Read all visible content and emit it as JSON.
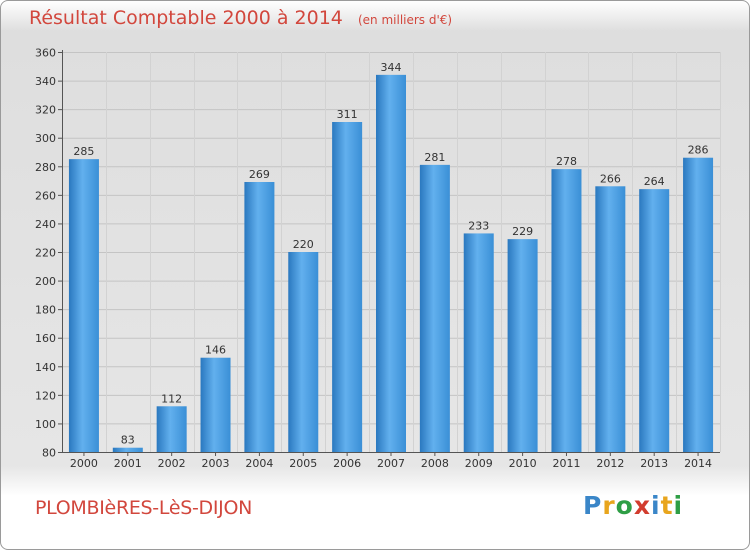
{
  "title": "Résultat Comptable 2000 à 2014",
  "subtitle": "(en milliers d'€)",
  "commune": "PLOMBIèRES-LèS-DIJON",
  "logo": {
    "letters": [
      "P",
      "r",
      "o",
      "x",
      "i",
      "t",
      "i"
    ],
    "colors": [
      "#3a86c8",
      "#e8a51d",
      "#2e9e45",
      "#d23c2e",
      "#3a86c8",
      "#e8a51d",
      "#2e9e45"
    ]
  },
  "colors": {
    "bar": "#3a8fd6",
    "bar_light": "#62b0ee",
    "bar_dark": "#2a78bf",
    "title": "#d2473d"
  },
  "chart_data": {
    "type": "bar",
    "categories": [
      "2000",
      "2001",
      "2002",
      "2003",
      "2004",
      "2005",
      "2006",
      "2007",
      "2008",
      "2009",
      "2010",
      "2011",
      "2012",
      "2013",
      "2014"
    ],
    "values": [
      285,
      83,
      112,
      146,
      269,
      220,
      311,
      344,
      281,
      233,
      229,
      278,
      266,
      264,
      286
    ],
    "title": "Résultat Comptable 2000 à 2014",
    "subtitle": "(en milliers d'€)",
    "ylim": [
      80,
      360
    ],
    "yticks": [
      80,
      100,
      120,
      140,
      160,
      180,
      200,
      220,
      240,
      260,
      280,
      300,
      320,
      340,
      360
    ],
    "grid": true
  }
}
